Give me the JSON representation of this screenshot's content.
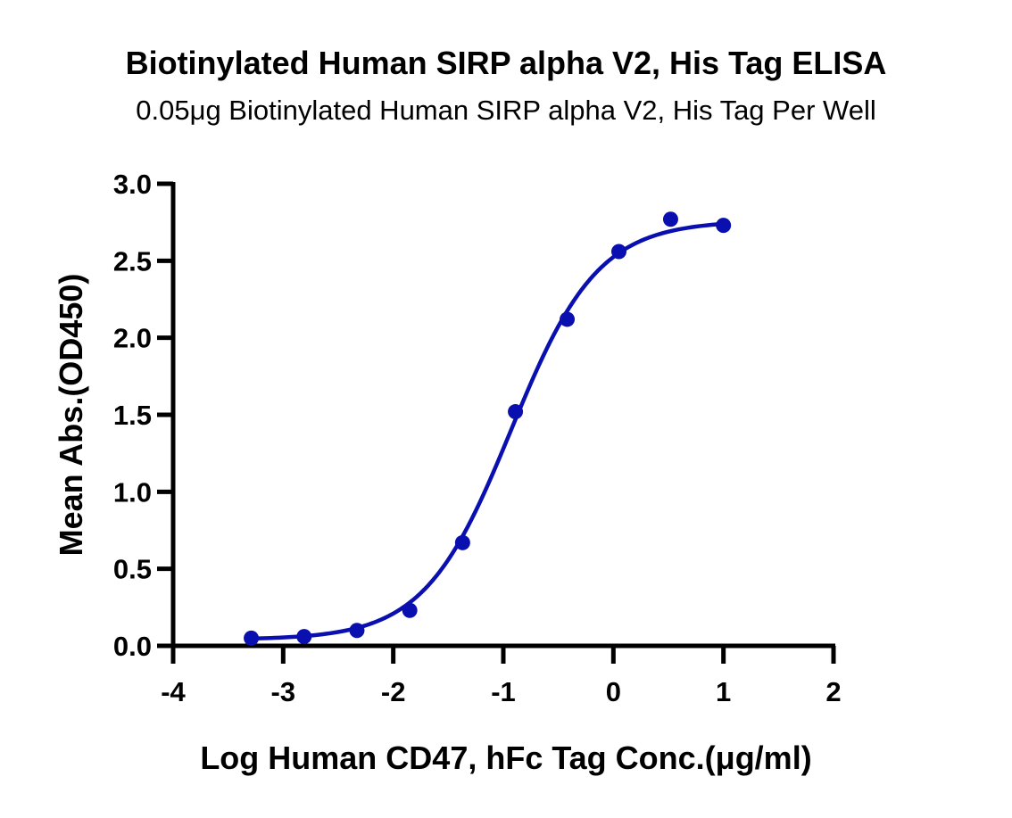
{
  "chart_data": {
    "type": "scatter",
    "title": "Biotinylated Human SIRP alpha V2, His Tag ELISA",
    "subtitle": "0.05μg Biotinylated Human SIRP alpha V2, His Tag Per Well",
    "xlabel": "Log Human CD47, hFc Tag Conc.(μg/ml)",
    "ylabel": "Mean Abs.(OD450)",
    "xlim": [
      -4,
      2
    ],
    "ylim": [
      0,
      3
    ],
    "xticks": [
      -4,
      -3,
      -2,
      -1,
      0,
      1,
      2
    ],
    "xtick_labels": [
      "-4",
      "-3",
      "-2",
      "-1",
      "0",
      "1",
      "2"
    ],
    "yticks": [
      0,
      0.5,
      1,
      1.5,
      2,
      2.5,
      3
    ],
    "ytick_labels": [
      "0.0",
      "0.5",
      "1.0",
      "1.5",
      "2.0",
      "2.5",
      "3.0"
    ],
    "grid": false,
    "legend": null,
    "series": [
      {
        "name": "Human CD47, hFc Tag",
        "color": "#0A0FB0",
        "x": [
          -3.29,
          -2.81,
          -2.33,
          -1.85,
          -1.37,
          -0.89,
          -0.42,
          0.05,
          0.52,
          1.0
        ],
        "y": [
          0.05,
          0.06,
          0.1,
          0.23,
          0.67,
          1.52,
          2.12,
          2.56,
          2.77,
          2.73
        ],
        "fit": {
          "model": "4PL",
          "bottom": 0.04,
          "top": 2.76,
          "log_ec50": -0.93,
          "hill_slope": 1.1,
          "x_range": [
            -3.29,
            1.0
          ]
        }
      }
    ]
  }
}
